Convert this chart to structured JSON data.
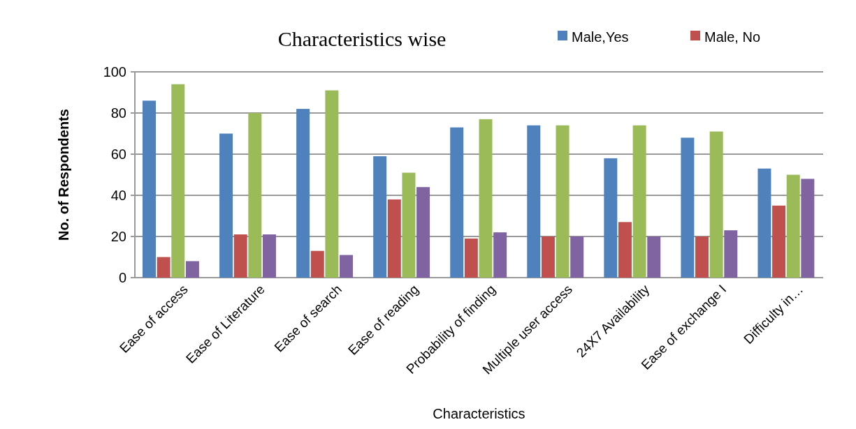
{
  "chart_data": {
    "type": "bar",
    "title": "Characteristics wise",
    "xlabel": "Characteristics",
    "ylabel": "No. of Respondents",
    "categories": [
      "Ease of access",
      "Ease of Literature",
      "Ease of search",
      "Ease of reading",
      "Probability of finding",
      "Multiple user access",
      "24X7 Availability",
      "Ease of exchange I",
      "Difficulty in…"
    ],
    "series": [
      {
        "name": "Male,Yes",
        "color": "#4f81bd",
        "values": [
          86,
          70,
          82,
          59,
          73,
          74,
          58,
          68,
          53
        ]
      },
      {
        "name": "Male, No",
        "color": "#c0504d",
        "values": [
          10,
          21,
          13,
          38,
          19,
          20,
          27,
          20,
          35
        ]
      },
      {
        "color": "#9bbb59",
        "values": [
          94,
          80,
          91,
          51,
          77,
          74,
          74,
          71,
          50
        ]
      },
      {
        "color": "#8064a2",
        "values": [
          8,
          21,
          11,
          44,
          22,
          20,
          20,
          23,
          48
        ]
      }
    ],
    "ylim": [
      0,
      100
    ],
    "yticks": [
      0,
      20,
      40,
      60,
      80,
      100
    ],
    "grid": "y",
    "legend": "top right"
  }
}
